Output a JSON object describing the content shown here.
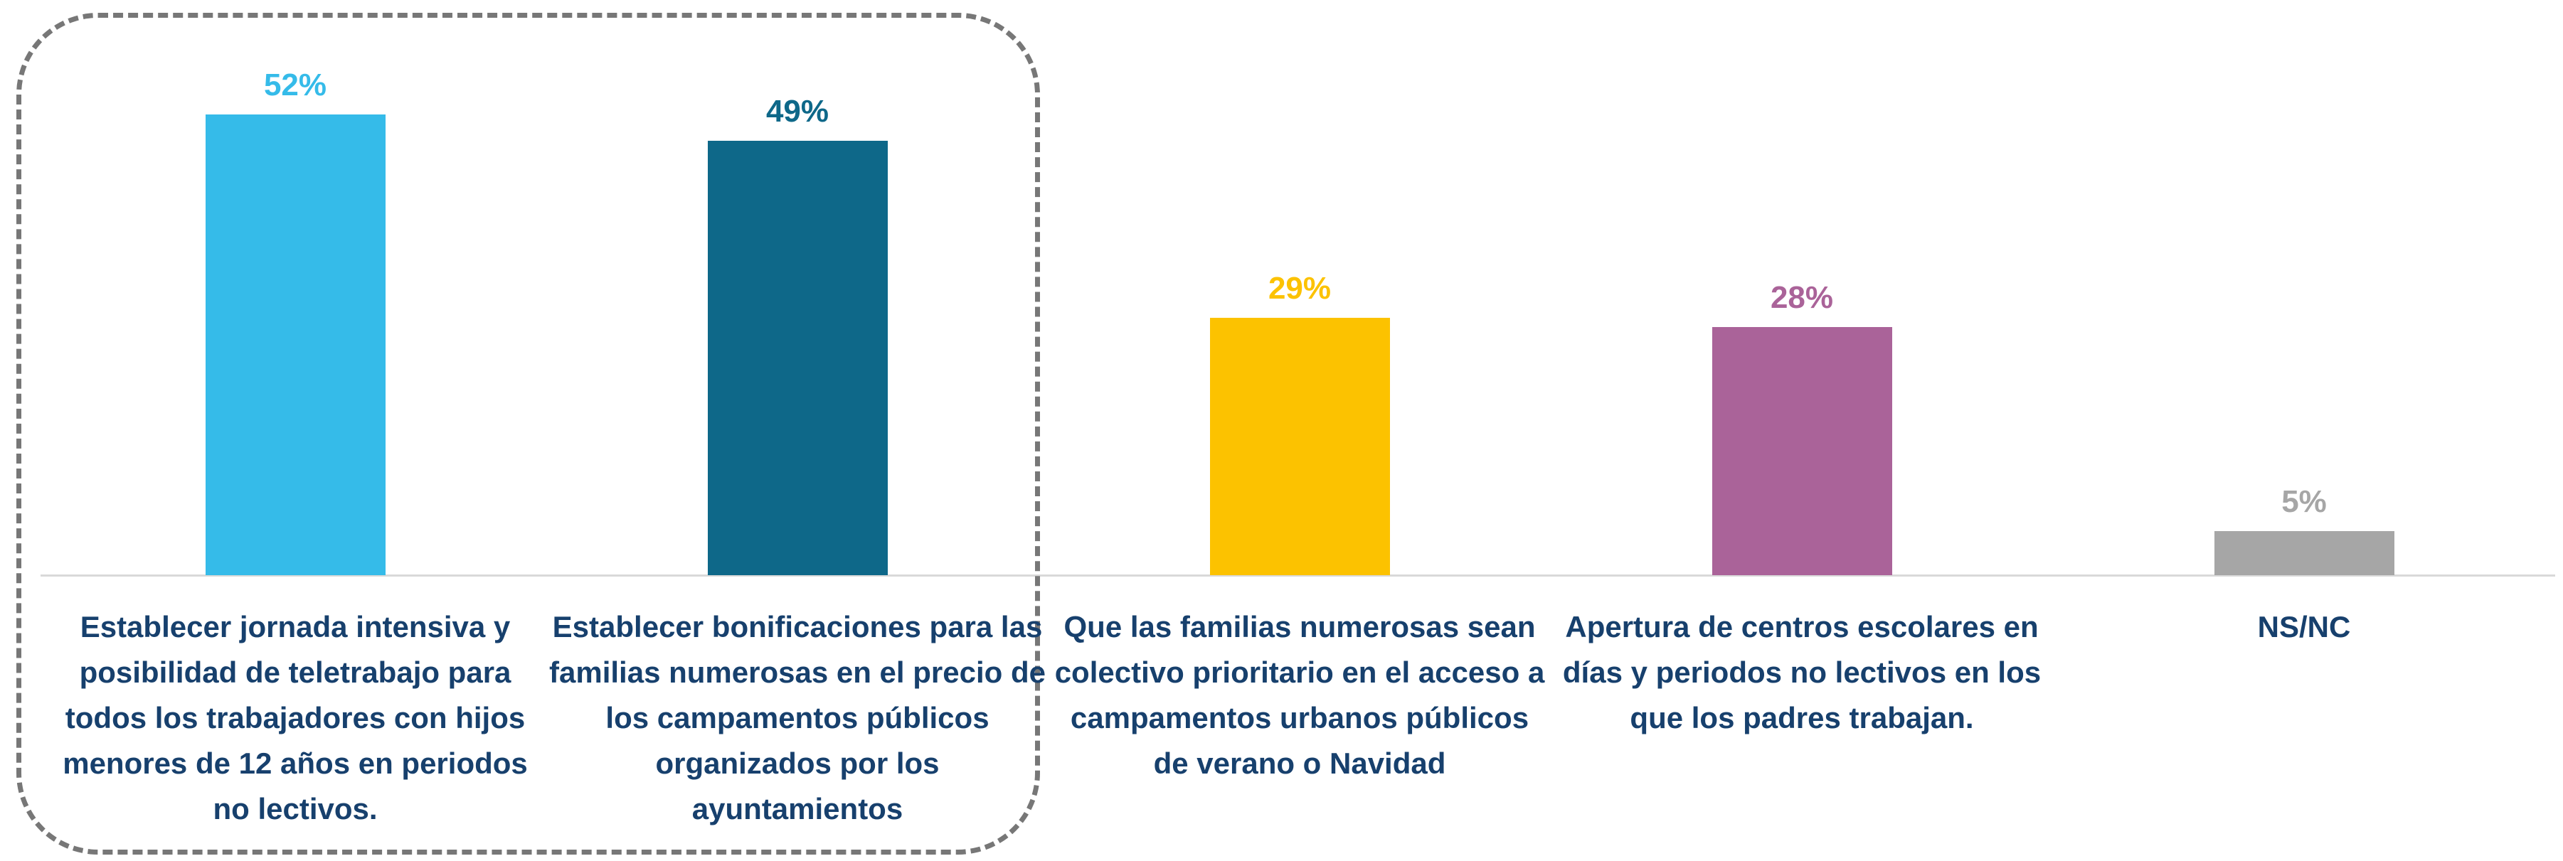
{
  "chart_data": {
    "type": "bar",
    "categories": [
      "Establecer jornada intensiva y posibilidad de teletrabajo para todos los trabajadores con hijos menores de 12 años en periodos no lectivos.",
      "Establecer bonificaciones para las familias numerosas en el precio de los campamentos públicos organizados por los ayuntamientos",
      "Que las familias numerosas sean colectivo prioritario en el acceso a campamentos urbanos públicos de verano o Navidad",
      "Apertura de centros escolares en días y periodos no lectivos en los que los padres trabajan.",
      "NS/NC"
    ],
    "values": [
      52,
      49,
      29,
      28,
      5
    ],
    "value_labels": [
      "52%",
      "49%",
      "29%",
      "28%",
      "5%"
    ],
    "colors": [
      "#35bbe9",
      "#0e6889",
      "#fcc200",
      "#aa6399",
      "#a6a6a6"
    ],
    "ylim": [
      0,
      60
    ]
  }
}
